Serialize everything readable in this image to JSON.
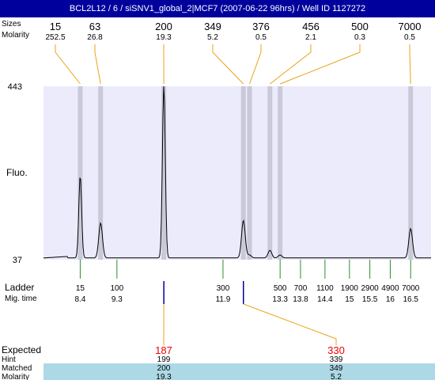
{
  "title": "BCL2L12 / 6 / siSNV1_global_2|MCF7 (2007-06-22 96hrs) / Well ID 1127272",
  "colors": {
    "title_bg": "#00009c",
    "plot_bg": "#ecebfb",
    "peak_band": "#c9c9d9",
    "leader_line": "#e8a317",
    "ladder_tick": "#2e8b2e",
    "expected_text": "#ee0000",
    "table_band": "#add8e6"
  },
  "row_labels": {
    "sizes": "Sizes",
    "molarity": "Molarity",
    "fluo": "Fluo.",
    "ladder": "Ladder",
    "mig_time": "Mig. time",
    "expected": "Expected",
    "hint": "Hint",
    "matched": "Matched",
    "molarity_bottom": "Molarity"
  },
  "chart_data": {
    "type": "line",
    "ylabel": "Fluo.",
    "ylim": [
      37,
      443
    ],
    "y_ticks": [
      37,
      443
    ],
    "x_range_migration_time": [
      7.5,
      17.0
    ],
    "peaks": [
      {
        "size": "15",
        "molarity": "252.5",
        "mig_time": 8.4,
        "height": 230
      },
      {
        "size": "63",
        "molarity": "26.8",
        "mig_time": 8.9,
        "height": 119
      },
      {
        "size": "200",
        "molarity": "19.3",
        "mig_time": 10.45,
        "height": 443
      },
      {
        "size": "349",
        "molarity": "5.2",
        "mig_time": 12.4,
        "height": 125
      },
      {
        "size": "376",
        "molarity": "0.5",
        "mig_time": 12.55,
        "height": 44
      },
      {
        "size": "456",
        "molarity": "2.1",
        "mig_time": 13.05,
        "height": 55
      },
      {
        "size": "500",
        "molarity": "0.3",
        "mig_time": 13.3,
        "height": 44
      },
      {
        "size": "7000",
        "molarity": "0.5",
        "mig_time": 16.5,
        "height": 106
      }
    ],
    "ladder": [
      {
        "size": "15",
        "mig_time": "8.4"
      },
      {
        "size": "100",
        "mig_time": "9.3"
      },
      {
        "size": "300",
        "mig_time": "11.9"
      },
      {
        "size": "500",
        "mig_time": "13.3"
      },
      {
        "size": "700",
        "mig_time": "13.8"
      },
      {
        "size": "1100",
        "mig_time": "14.4"
      },
      {
        "size": "1900",
        "mig_time": "15"
      },
      {
        "size": "2900",
        "mig_time": "15.5"
      },
      {
        "size": "4900",
        "mig_time": "16"
      },
      {
        "size": "7000",
        "mig_time": "16.5"
      }
    ],
    "expected": [
      {
        "expected": "187",
        "hint": "199",
        "matched": "200",
        "molarity": "19.3",
        "mig_time": 10.45
      },
      {
        "expected": "330",
        "hint": "339",
        "matched": "349",
        "molarity": "5.2",
        "mig_time": 12.4
      }
    ]
  }
}
